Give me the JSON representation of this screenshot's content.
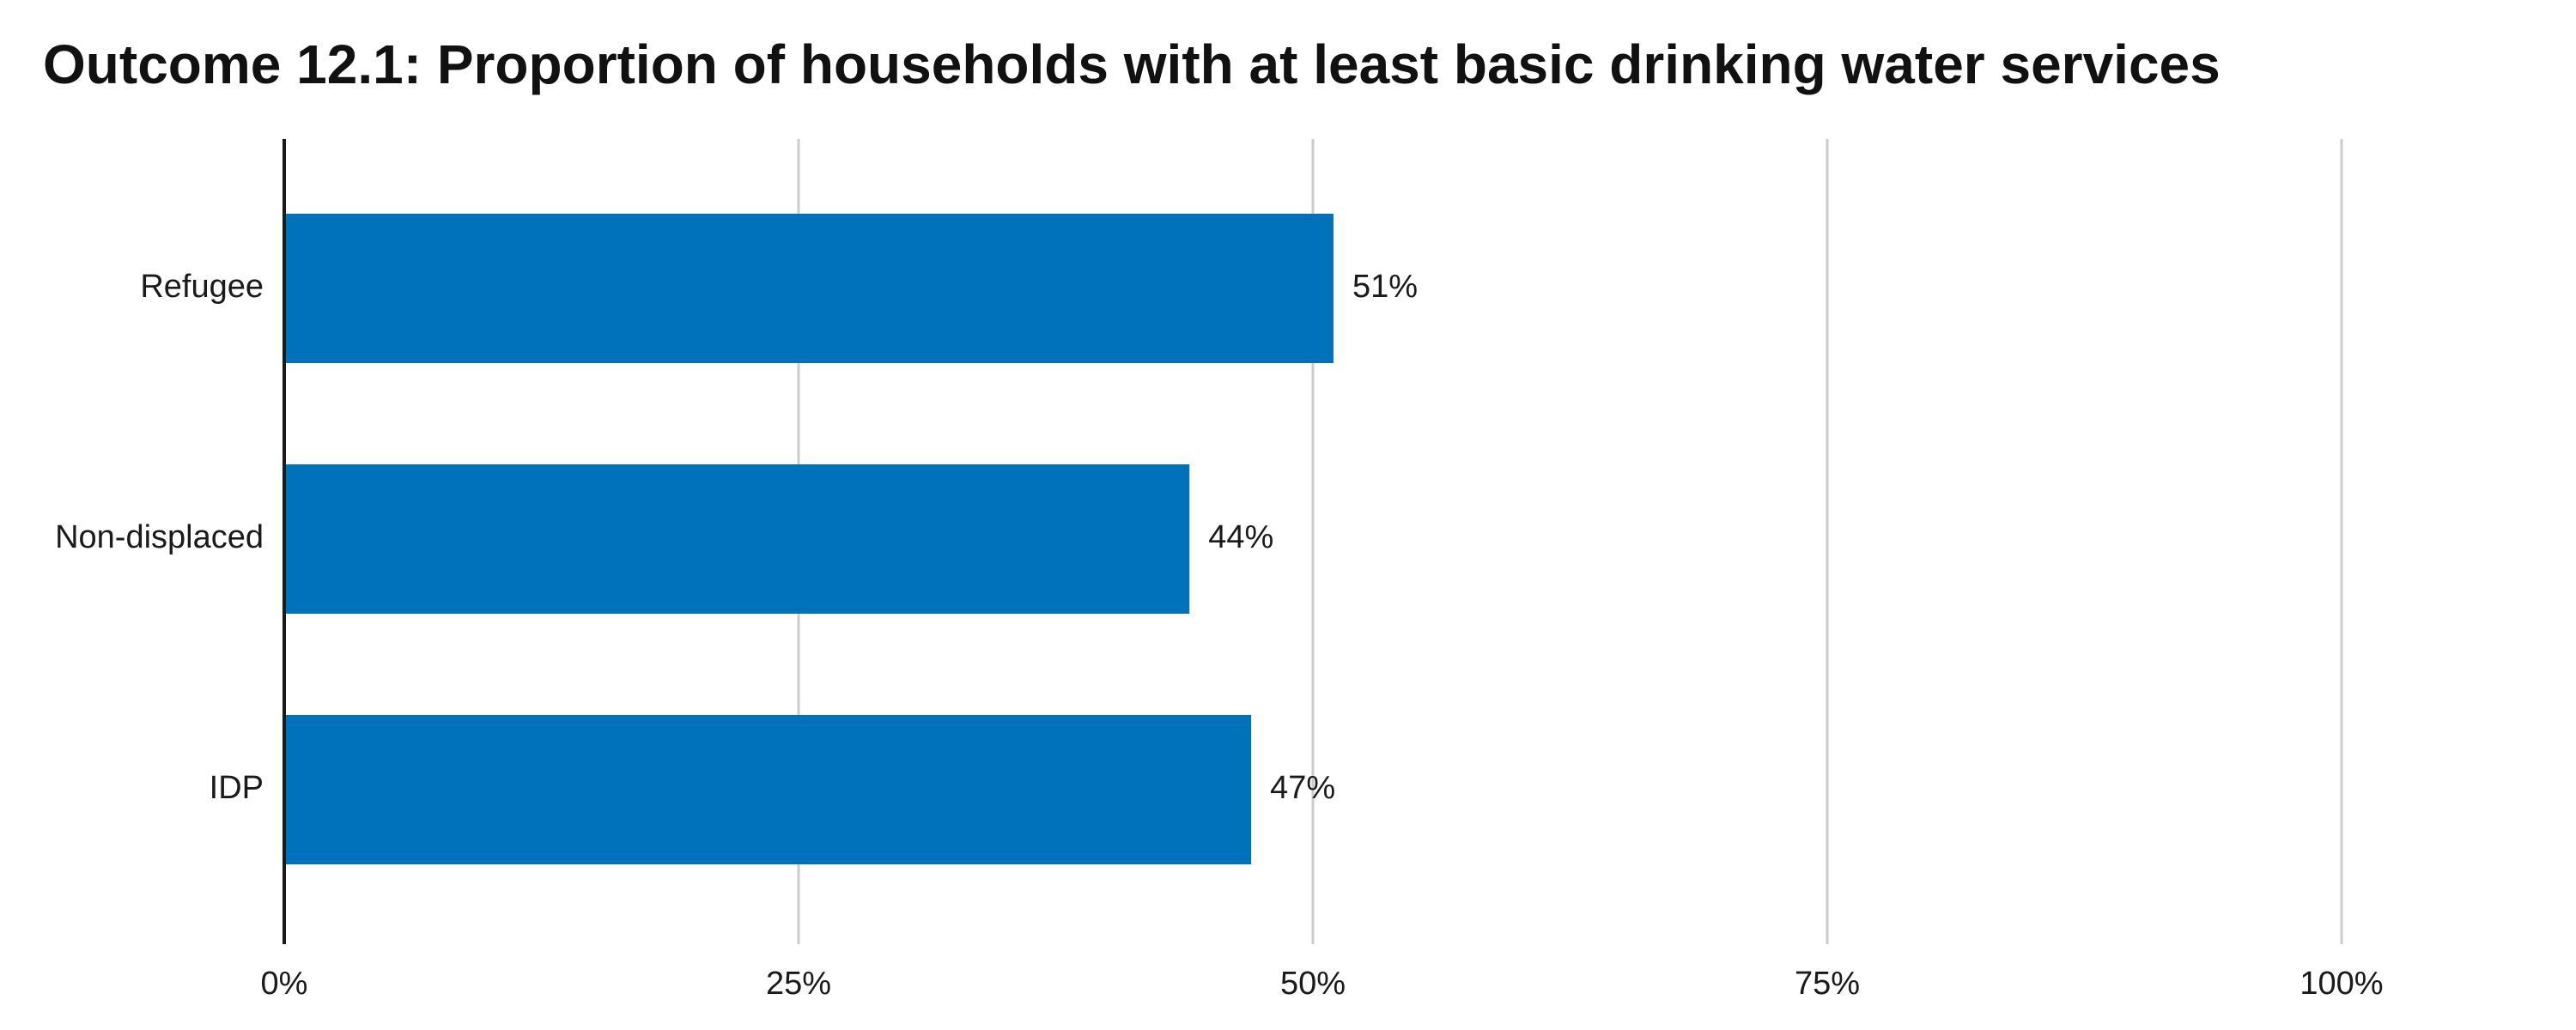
{
  "title": "Outcome 12.1: Proportion of households with at least basic drinking water services",
  "colors": {
    "bar": "#0072bc",
    "grid": "#cccccc",
    "axis": "#1a1a1a",
    "text": "#1a1a1a"
  },
  "chart_data": {
    "type": "bar",
    "orientation": "horizontal",
    "title": "Outcome 12.1: Proportion of households with at least basic drinking water services",
    "categories": [
      "Refugee",
      "Non-displaced",
      "IDP"
    ],
    "values": [
      51,
      44,
      47
    ],
    "value_labels": [
      "51%",
      "44%",
      "47%"
    ],
    "xlim": [
      0,
      100
    ],
    "xticks": [
      0,
      25,
      50,
      75,
      100
    ],
    "xtick_labels": [
      "0%",
      "25%",
      "50%",
      "75%",
      "100%"
    ],
    "xlabel": "",
    "ylabel": "",
    "grid": true,
    "legend": false
  }
}
